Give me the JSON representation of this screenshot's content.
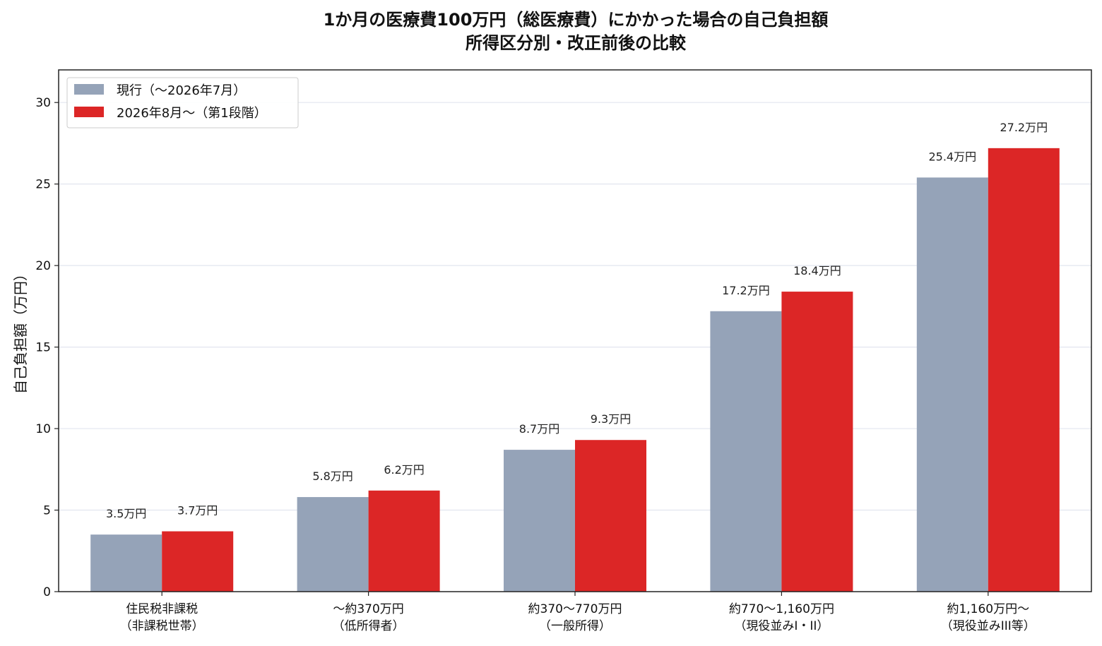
{
  "chart_data": {
    "type": "bar",
    "title": [
      "1か月の医療費100万円（総医療費）にかかった場合の自己負担額",
      "所得区分別・改正前後の比較"
    ],
    "ylabel": "自己負担額（万円）",
    "xlabel": "",
    "ylim": [
      0,
      32
    ],
    "yticks": [
      0,
      5,
      10,
      15,
      20,
      25,
      30
    ],
    "grid": "horizontal",
    "legend_position": "top-left",
    "categories": [
      [
        "住民税非課税",
        "（非課税世帯）"
      ],
      [
        "〜約370万円",
        "（低所得者）"
      ],
      [
        "約370〜770万円",
        "（一般所得）"
      ],
      [
        "約770〜1,160万円",
        "（現役並みI・II）"
      ],
      [
        "約1,160万円〜",
        "（現役並みIII等）"
      ]
    ],
    "series": [
      {
        "name": "現行（〜2026年7月）",
        "color": "#95a3b8",
        "values": [
          3.5,
          5.8,
          8.7,
          17.2,
          25.4
        ],
        "labels": [
          "3.5万円",
          "5.8万円",
          "8.7万円",
          "17.2万円",
          "25.4万円"
        ]
      },
      {
        "name": "2026年8月〜（第1段階）",
        "color": "#dc2626",
        "values": [
          3.7,
          6.2,
          9.3,
          18.4,
          27.2
        ],
        "labels": [
          "3.7万円",
          "6.2万円",
          "9.3万円",
          "18.4万円",
          "27.2万円"
        ]
      }
    ]
  }
}
